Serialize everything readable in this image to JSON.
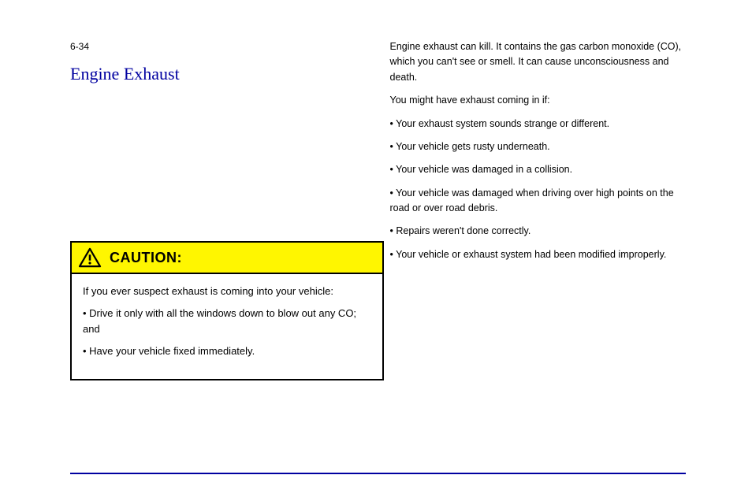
{
  "page": {
    "number_label": "6-34",
    "section_title": "Engine Exhaust",
    "background_color": "#ffffff",
    "rule_color": "#0000a0",
    "title_color": "#0000a0",
    "text_color": "#000000",
    "margin_text_color": "#808080",
    "title_fontsize": 22,
    "body_fontsize": 12.5,
    "caution_body_fontsize": 13,
    "caution_heading_fontsize": 18
  },
  "left_col": {
    "paragraphs": []
  },
  "right_col": {
    "paragraphs": [
      "Engine exhaust can kill. It contains the gas carbon monoxide (CO), which you can't see or smell. It can cause unconsciousness and death.",
      "You might have exhaust coming in if:",
      "• Your exhaust system sounds strange or different.",
      "• Your vehicle gets rusty underneath.",
      "• Your vehicle was damaged in a collision.",
      "• Your vehicle was damaged when driving over high points on the road or over road debris.",
      "• Repairs weren't done correctly.",
      "• Your vehicle or exhaust system had been modified improperly."
    ]
  },
  "caution": {
    "heading": "CAUTION:",
    "header_bg": "#fff600",
    "border_color": "#000000",
    "body_paragraphs": [
      "If you ever suspect exhaust is coming into your vehicle:",
      "• Drive it only with all the windows down to blow out any CO; and",
      "• Have your vehicle fixed immediately."
    ]
  },
  "margin": {
    "left_text": "",
    "right_text": ""
  }
}
